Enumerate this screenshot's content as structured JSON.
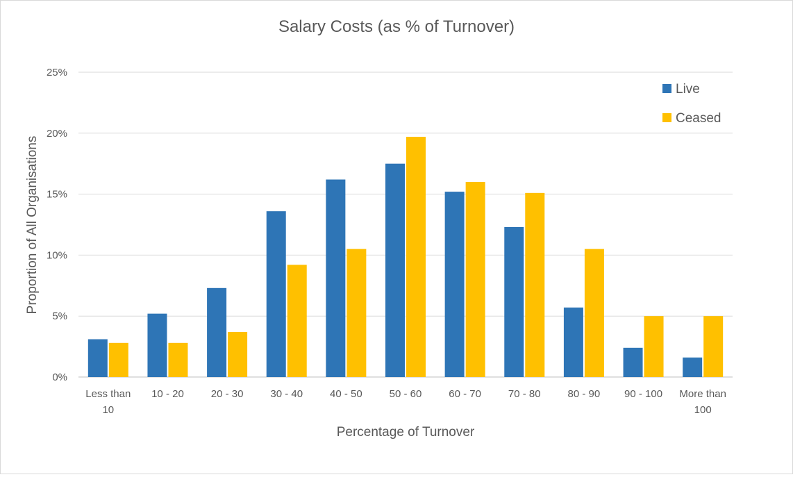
{
  "chart_data": {
    "type": "bar",
    "title": "Salary Costs (as % of Turnover)",
    "xlabel": "Percentage of Turnover",
    "ylabel": "Proportion of All Organisations",
    "categories": [
      [
        "Less than",
        "10"
      ],
      [
        "10 - 20"
      ],
      [
        "20 - 30"
      ],
      [
        "30 - 40"
      ],
      [
        "40 - 50"
      ],
      [
        "50 - 60"
      ],
      [
        "60 - 70"
      ],
      [
        "70 - 80"
      ],
      [
        "80 - 90"
      ],
      [
        "90 - 100"
      ],
      [
        "More than",
        "100"
      ]
    ],
    "series": [
      {
        "name": "Live",
        "color": "#2e75b6",
        "values": [
          3.1,
          5.2,
          7.3,
          13.6,
          16.2,
          17.5,
          15.2,
          12.3,
          5.7,
          2.4,
          1.6
        ]
      },
      {
        "name": "Ceased",
        "color": "#ffc000",
        "values": [
          2.8,
          2.8,
          3.7,
          9.2,
          10.5,
          19.7,
          16.0,
          15.1,
          10.5,
          5.0,
          5.0
        ]
      }
    ],
    "ylim": [
      0,
      25
    ],
    "yticks": [
      0,
      5,
      10,
      15,
      20,
      25
    ],
    "ytick_labels": [
      "0%",
      "5%",
      "10%",
      "15%",
      "20%",
      "25%"
    ],
    "grid": true,
    "legend_position": "top-right"
  }
}
